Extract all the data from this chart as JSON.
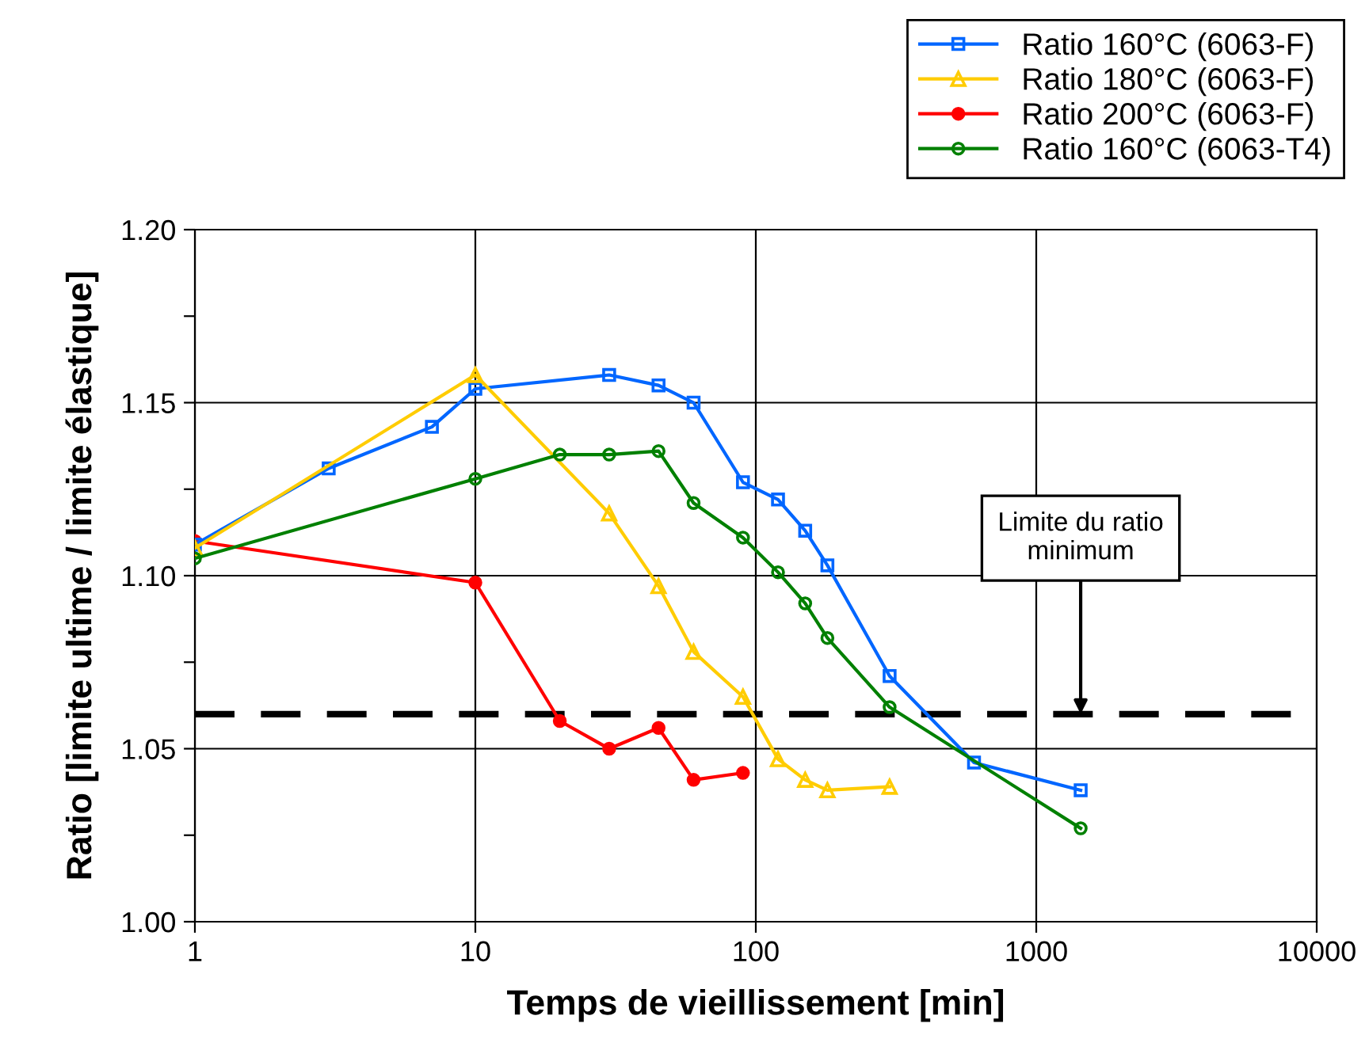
{
  "chart_data": {
    "type": "line",
    "xlabel": "Temps de vieillissement [min]",
    "ylabel": "Ratio [limite ultime / limite élastique]",
    "log": "x",
    "xlim": [
      1,
      10000
    ],
    "xticks": [
      1,
      10,
      100,
      1000,
      10000
    ],
    "ylim": [
      1.0,
      1.2
    ],
    "yticks": [
      {
        "value": 1.0,
        "label": "1.00"
      },
      {
        "value": 1.025,
        "label": null
      },
      {
        "value": 1.05,
        "label": "1.05"
      },
      {
        "value": 1.075,
        "label": null
      },
      {
        "value": 1.1,
        "label": "1.10"
      },
      {
        "value": 1.125,
        "label": null
      },
      {
        "value": 1.15,
        "label": "1.15"
      },
      {
        "value": 1.175,
        "label": null
      },
      {
        "value": 1.2,
        "label": "1.20"
      }
    ],
    "grid": true,
    "legend": "top right",
    "line_style": "solid",
    "series": [
      {
        "name": "Ratio 160°C (6063-F)",
        "color": "#0066ff",
        "marker": "square",
        "x": [
          1,
          3,
          7,
          10,
          30,
          45,
          60,
          90,
          120,
          150,
          180,
          300,
          600,
          1440
        ],
        "values": [
          1.109,
          1.131,
          1.143,
          1.154,
          1.158,
          1.155,
          1.15,
          1.127,
          1.122,
          1.113,
          1.103,
          1.071,
          1.046,
          1.038
        ]
      },
      {
        "name": "Ratio 180°C (6063-F)",
        "color": "#ffcc00",
        "marker": "triangle",
        "x": [
          1,
          10,
          30,
          45,
          60,
          90,
          120,
          150,
          180,
          300
        ],
        "values": [
          1.108,
          1.158,
          1.118,
          1.097,
          1.078,
          1.065,
          1.047,
          1.041,
          1.038,
          1.039
        ]
      },
      {
        "name": "Ratio 200°C (6063-F)",
        "color": "#ff0000",
        "marker": "circle",
        "x": [
          1,
          10,
          20,
          30,
          45,
          60,
          90
        ],
        "values": [
          1.11,
          1.098,
          1.058,
          1.05,
          1.056,
          1.041,
          1.043
        ]
      },
      {
        "name": "Ratio 160°C (6063-T4)",
        "color": "#008000",
        "marker": "circle",
        "x": [
          1,
          10,
          20,
          30,
          45,
          60,
          90,
          120,
          150,
          180,
          300,
          1440
        ],
        "values": [
          1.105,
          1.128,
          1.135,
          1.135,
          1.136,
          1.121,
          1.111,
          1.101,
          1.092,
          1.082,
          1.062,
          1.027
        ]
      }
    ],
    "ref_lines": [
      {
        "axis": "y",
        "value": 1.06,
        "color": "#000000",
        "line_style": "dashed"
      }
    ],
    "annotations": [
      {
        "text": "Limite du ratio\nminimum",
        "x": 1440,
        "y": 1.06
      }
    ]
  }
}
